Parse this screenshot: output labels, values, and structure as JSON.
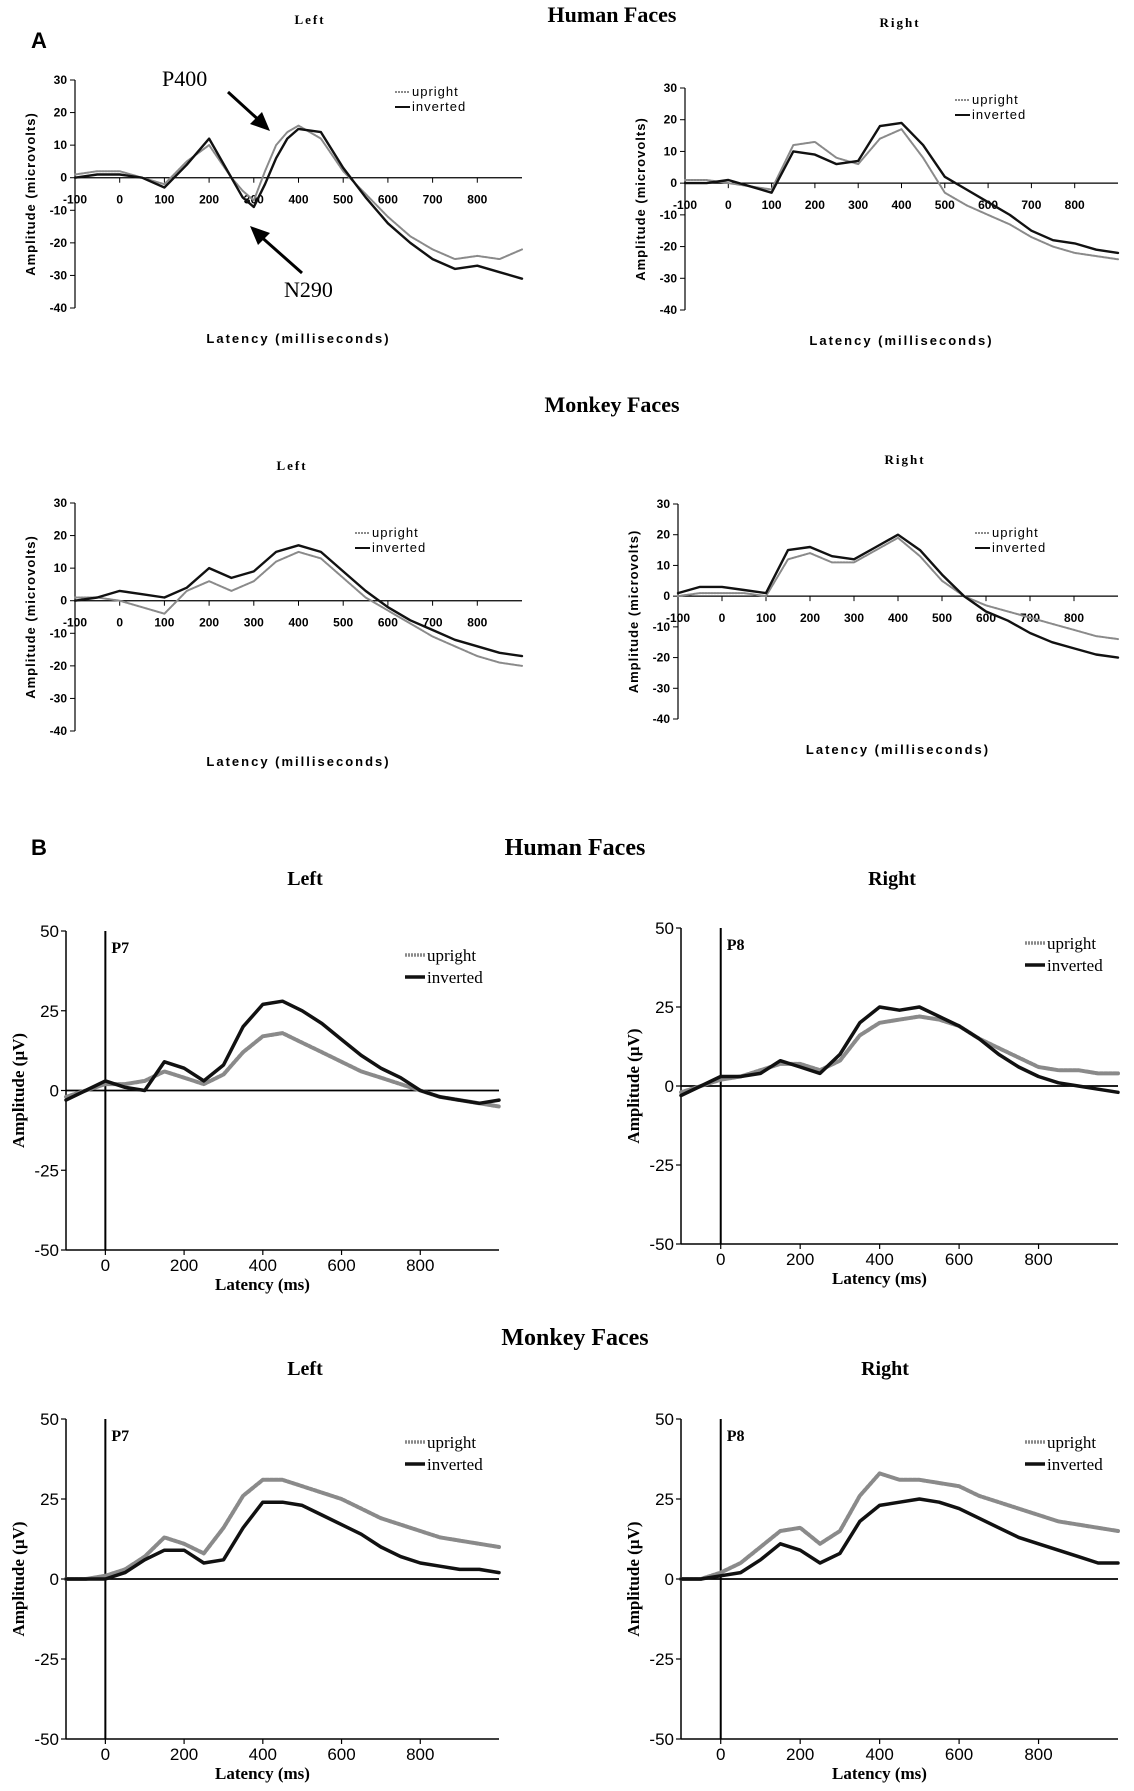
{
  "panels": {
    "a": "A",
    "b": "B"
  },
  "sections": {
    "a_human": {
      "title": "Human Faces",
      "left": "Left",
      "right": "Right"
    },
    "a_monkey": {
      "title": "Monkey Faces",
      "left": "Left",
      "right": "Right"
    },
    "b_human": {
      "title": "Human Faces",
      "left": "Left",
      "right": "Right"
    },
    "b_monkey": {
      "title": "Monkey Faces",
      "left": "Left",
      "right": "Right"
    }
  },
  "annotations": {
    "p400": "P400",
    "n290": "N290"
  },
  "colors": {
    "upright": "#8a8a8a",
    "inverted": "#111111",
    "axis": "#000000"
  },
  "chart_data": [
    {
      "id": "A-human-left",
      "type": "line",
      "style": "A",
      "title": "Human Faces",
      "subtitle": "Left",
      "xlabel": "Latency (milliseconds)",
      "ylabel": "Amplitude (microvolts)",
      "xlim": [
        -100,
        900
      ],
      "ylim": [
        -40,
        30
      ],
      "xticks": [
        -100,
        0,
        100,
        200,
        300,
        400,
        500,
        600,
        700,
        800
      ],
      "yticks": [
        30,
        20,
        10,
        0,
        -10,
        -20,
        -30,
        -40
      ],
      "legend": [
        "upright",
        "inverted"
      ],
      "series": [
        {
          "name": "upright",
          "x": [
            -100,
            -50,
            0,
            50,
            100,
            150,
            200,
            250,
            275,
            300,
            325,
            350,
            375,
            400,
            450,
            500,
            550,
            600,
            650,
            700,
            750,
            800,
            850,
            900
          ],
          "y": [
            1,
            2,
            2,
            0,
            -2,
            5,
            10,
            0,
            -4,
            -7,
            2,
            10,
            14,
            16,
            12,
            2,
            -5,
            -12,
            -18,
            -22,
            -25,
            -24,
            -25,
            -22
          ]
        },
        {
          "name": "inverted",
          "x": [
            -100,
            -50,
            0,
            50,
            100,
            150,
            200,
            250,
            275,
            300,
            325,
            350,
            375,
            400,
            450,
            500,
            550,
            600,
            650,
            700,
            750,
            800,
            850,
            900
          ],
          "y": [
            0,
            1,
            1,
            0,
            -3,
            4,
            12,
            0,
            -6,
            -9,
            -2,
            6,
            12,
            15,
            14,
            3,
            -6,
            -14,
            -20,
            -25,
            -28,
            -27,
            -29,
            -31
          ]
        }
      ]
    },
    {
      "id": "A-human-right",
      "type": "line",
      "style": "A",
      "title": "Human Faces",
      "subtitle": "Right",
      "xlabel": "Latency (milliseconds)",
      "ylabel": "Amplitude (microvolts)",
      "xlim": [
        -100,
        900
      ],
      "ylim": [
        -40,
        30
      ],
      "xticks": [
        -100,
        0,
        100,
        200,
        300,
        400,
        500,
        600,
        700,
        800
      ],
      "yticks": [
        30,
        20,
        10,
        0,
        -10,
        -20,
        -30,
        -40
      ],
      "legend": [
        "upright",
        "inverted"
      ],
      "series": [
        {
          "name": "upright",
          "x": [
            -100,
            -50,
            0,
            50,
            100,
            150,
            200,
            250,
            300,
            350,
            400,
            450,
            500,
            550,
            600,
            650,
            700,
            750,
            800,
            850,
            900
          ],
          "y": [
            1,
            1,
            0,
            -1,
            -2,
            12,
            13,
            8,
            6,
            14,
            17,
            8,
            -3,
            -7,
            -10,
            -13,
            -17,
            -20,
            -22,
            -23,
            -24
          ]
        },
        {
          "name": "inverted",
          "x": [
            -100,
            -50,
            0,
            50,
            100,
            150,
            200,
            250,
            300,
            350,
            400,
            450,
            500,
            550,
            600,
            650,
            700,
            750,
            800,
            850,
            900
          ],
          "y": [
            0,
            0,
            1,
            -1,
            -3,
            10,
            9,
            6,
            7,
            18,
            19,
            12,
            2,
            -2,
            -6,
            -10,
            -15,
            -18,
            -19,
            -21,
            -22
          ]
        }
      ]
    },
    {
      "id": "A-monkey-left",
      "type": "line",
      "style": "A",
      "title": "Monkey Faces",
      "subtitle": "Left",
      "xlabel": "Latency (milliseconds)",
      "ylabel": "Amplitude (microvolts)",
      "xlim": [
        -100,
        900
      ],
      "ylim": [
        -40,
        30
      ],
      "xticks": [
        -100,
        0,
        100,
        200,
        300,
        400,
        500,
        600,
        700,
        800
      ],
      "yticks": [
        30,
        20,
        10,
        0,
        -10,
        -20,
        -30,
        -40
      ],
      "legend": [
        "upright",
        "inverted"
      ],
      "series": [
        {
          "name": "upright",
          "x": [
            -100,
            -50,
            0,
            50,
            100,
            150,
            200,
            250,
            300,
            350,
            400,
            450,
            500,
            550,
            600,
            650,
            700,
            750,
            800,
            850,
            900
          ],
          "y": [
            1,
            1,
            0,
            -2,
            -4,
            3,
            6,
            3,
            6,
            12,
            15,
            13,
            7,
            1,
            -3,
            -7,
            -11,
            -14,
            -17,
            -19,
            -20
          ]
        },
        {
          "name": "inverted",
          "x": [
            -100,
            -50,
            0,
            50,
            100,
            150,
            200,
            250,
            300,
            350,
            400,
            450,
            500,
            550,
            600,
            650,
            700,
            750,
            800,
            850,
            900
          ],
          "y": [
            0,
            1,
            3,
            2,
            1,
            4,
            10,
            7,
            9,
            15,
            17,
            15,
            9,
            3,
            -2,
            -6,
            -9,
            -12,
            -14,
            -16,
            -17
          ]
        }
      ]
    },
    {
      "id": "A-monkey-right",
      "type": "line",
      "style": "A",
      "title": "Monkey Faces",
      "subtitle": "Right",
      "xlabel": "Latency (milliseconds)",
      "ylabel": "Amplitude (microvolts)",
      "xlim": [
        -100,
        900
      ],
      "ylim": [
        -40,
        30
      ],
      "xticks": [
        -100,
        0,
        100,
        200,
        300,
        400,
        500,
        600,
        700,
        800
      ],
      "yticks": [
        30,
        20,
        10,
        0,
        -10,
        -20,
        -30,
        -40
      ],
      "legend": [
        "upright",
        "inverted"
      ],
      "series": [
        {
          "name": "upright",
          "x": [
            -100,
            -50,
            0,
            50,
            100,
            150,
            200,
            250,
            300,
            350,
            400,
            450,
            500,
            550,
            600,
            650,
            700,
            750,
            800,
            850,
            900
          ],
          "y": [
            0,
            1,
            1,
            1,
            0,
            12,
            14,
            11,
            11,
            15,
            19,
            13,
            5,
            0,
            -3,
            -5,
            -7,
            -9,
            -11,
            -13,
            -14
          ]
        },
        {
          "name": "inverted",
          "x": [
            -100,
            -50,
            0,
            50,
            100,
            150,
            200,
            250,
            300,
            350,
            400,
            450,
            500,
            550,
            600,
            650,
            700,
            750,
            800,
            850,
            900
          ],
          "y": [
            1,
            3,
            3,
            2,
            1,
            15,
            16,
            13,
            12,
            16,
            20,
            15,
            7,
            0,
            -5,
            -8,
            -12,
            -15,
            -17,
            -19,
            -20
          ]
        }
      ]
    },
    {
      "id": "B-human-left",
      "type": "line",
      "style": "B",
      "title": "Human Faces",
      "subtitle": "Left",
      "electrode": "P7",
      "xlabel": "Latency (ms)",
      "ylabel": "Amplitude (µV)",
      "xlim": [
        -100,
        1000
      ],
      "ylim": [
        -50,
        50
      ],
      "xticks": [
        0,
        200,
        400,
        600,
        800
      ],
      "yticks": [
        50,
        25,
        0,
        -25,
        -50
      ],
      "legend": [
        "upright",
        "inverted"
      ],
      "series": [
        {
          "name": "upright",
          "x": [
            -100,
            -50,
            0,
            50,
            100,
            150,
            200,
            250,
            300,
            350,
            400,
            450,
            500,
            550,
            600,
            650,
            700,
            750,
            800,
            850,
            900,
            950,
            1000
          ],
          "y": [
            -2,
            0,
            2,
            2,
            3,
            6,
            4,
            2,
            5,
            12,
            17,
            18,
            15,
            12,
            9,
            6,
            4,
            2,
            0,
            -2,
            -3,
            -4,
            -5
          ]
        },
        {
          "name": "inverted",
          "x": [
            -100,
            -50,
            0,
            50,
            100,
            150,
            200,
            250,
            300,
            350,
            400,
            450,
            500,
            550,
            600,
            650,
            700,
            750,
            800,
            850,
            900,
            950,
            1000
          ],
          "y": [
            -3,
            0,
            3,
            1,
            0,
            9,
            7,
            3,
            8,
            20,
            27,
            28,
            25,
            21,
            16,
            11,
            7,
            4,
            0,
            -2,
            -3,
            -4,
            -3
          ]
        }
      ]
    },
    {
      "id": "B-human-right",
      "type": "line",
      "style": "B",
      "title": "Human Faces",
      "subtitle": "Right",
      "electrode": "P8",
      "xlabel": "Latency (ms)",
      "ylabel": "Amplitude (µV)",
      "xlim": [
        -100,
        1000
      ],
      "ylim": [
        -50,
        50
      ],
      "xticks": [
        0,
        200,
        400,
        600,
        800
      ],
      "yticks": [
        50,
        25,
        0,
        -25,
        -50
      ],
      "legend": [
        "upright",
        "inverted"
      ],
      "series": [
        {
          "name": "upright",
          "x": [
            -100,
            -50,
            0,
            50,
            100,
            150,
            200,
            250,
            300,
            350,
            400,
            450,
            500,
            550,
            600,
            650,
            700,
            750,
            800,
            850,
            900,
            950,
            1000
          ],
          "y": [
            -2,
            0,
            2,
            3,
            5,
            7,
            7,
            5,
            8,
            16,
            20,
            21,
            22,
            21,
            19,
            15,
            12,
            9,
            6,
            5,
            5,
            4,
            4
          ]
        },
        {
          "name": "inverted",
          "x": [
            -100,
            -50,
            0,
            50,
            100,
            150,
            200,
            250,
            300,
            350,
            400,
            450,
            500,
            550,
            600,
            650,
            700,
            750,
            800,
            850,
            900,
            950,
            1000
          ],
          "y": [
            -3,
            0,
            3,
            3,
            4,
            8,
            6,
            4,
            10,
            20,
            25,
            24,
            25,
            22,
            19,
            15,
            10,
            6,
            3,
            1,
            0,
            -1,
            -2
          ]
        }
      ]
    },
    {
      "id": "B-monkey-left",
      "type": "line",
      "style": "B",
      "title": "Monkey Faces",
      "subtitle": "Left",
      "electrode": "P7",
      "xlabel": "Latency (ms)",
      "ylabel": "Amplitude (µV)",
      "xlim": [
        -100,
        1000
      ],
      "ylim": [
        -50,
        50
      ],
      "xticks": [
        0,
        200,
        400,
        600,
        800
      ],
      "yticks": [
        50,
        25,
        0,
        -25,
        -50
      ],
      "legend": [
        "upright",
        "inverted"
      ],
      "series": [
        {
          "name": "upright",
          "x": [
            -100,
            -50,
            0,
            50,
            100,
            150,
            200,
            250,
            300,
            350,
            400,
            450,
            500,
            550,
            600,
            650,
            700,
            750,
            800,
            850,
            900,
            950,
            1000
          ],
          "y": [
            0,
            0,
            1,
            3,
            7,
            13,
            11,
            8,
            16,
            26,
            31,
            31,
            29,
            27,
            25,
            22,
            19,
            17,
            15,
            13,
            12,
            11,
            10
          ]
        },
        {
          "name": "inverted",
          "x": [
            -100,
            -50,
            0,
            50,
            100,
            150,
            200,
            250,
            300,
            350,
            400,
            450,
            500,
            550,
            600,
            650,
            700,
            750,
            800,
            850,
            900,
            950,
            1000
          ],
          "y": [
            0,
            0,
            0,
            2,
            6,
            9,
            9,
            5,
            6,
            16,
            24,
            24,
            23,
            20,
            17,
            14,
            10,
            7,
            5,
            4,
            3,
            3,
            2
          ]
        }
      ]
    },
    {
      "id": "B-monkey-right",
      "type": "line",
      "style": "B",
      "title": "Monkey Faces",
      "subtitle": "Right",
      "electrode": "P8",
      "xlabel": "Latency (ms)",
      "ylabel": "Amplitude (µV)",
      "xlim": [
        -100,
        1000
      ],
      "ylim": [
        -50,
        50
      ],
      "xticks": [
        0,
        200,
        400,
        600,
        800
      ],
      "yticks": [
        50,
        25,
        0,
        -25,
        -50
      ],
      "legend": [
        "upright",
        "inverted"
      ],
      "series": [
        {
          "name": "upright",
          "x": [
            -100,
            -50,
            0,
            50,
            100,
            150,
            200,
            250,
            300,
            350,
            400,
            450,
            500,
            550,
            600,
            650,
            700,
            750,
            800,
            850,
            900,
            950,
            1000
          ],
          "y": [
            0,
            0,
            2,
            5,
            10,
            15,
            16,
            11,
            15,
            26,
            33,
            31,
            31,
            30,
            29,
            26,
            24,
            22,
            20,
            18,
            17,
            16,
            15
          ]
        },
        {
          "name": "inverted",
          "x": [
            -100,
            -50,
            0,
            50,
            100,
            150,
            200,
            250,
            300,
            350,
            400,
            450,
            500,
            550,
            600,
            650,
            700,
            750,
            800,
            850,
            900,
            950,
            1000
          ],
          "y": [
            0,
            0,
            1,
            2,
            6,
            11,
            9,
            5,
            8,
            18,
            23,
            24,
            25,
            24,
            22,
            19,
            16,
            13,
            11,
            9,
            7,
            5,
            5
          ]
        }
      ]
    }
  ]
}
